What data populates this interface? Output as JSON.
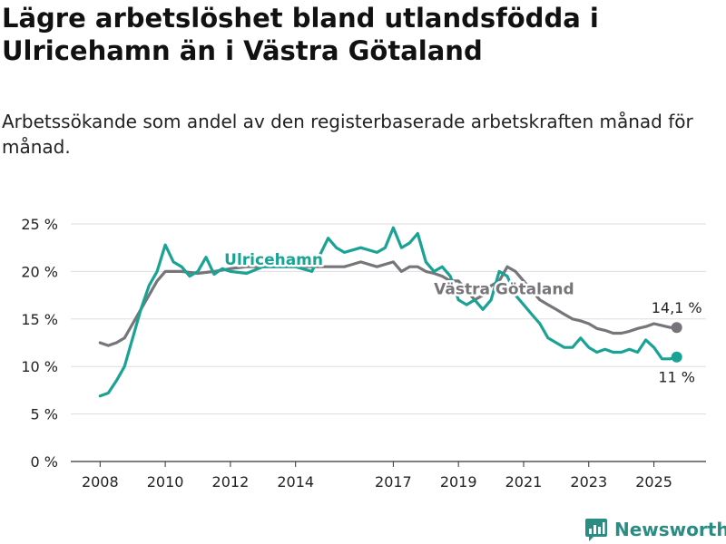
{
  "title": "Lägre arbetslöshet bland utlandsfödda i Ulricehamn än i Västra Götaland",
  "subtitle": "Arbetssökande som andel av den registerbaserade arbetskraften månad för månad.",
  "logo": {
    "text": "Newsworthy",
    "icon": "newsworthy-chart-icon"
  },
  "colors": {
    "ulricehamn": "#1aa395",
    "vastra": "#77747a",
    "grid": "#dddddd"
  },
  "chart_data": {
    "type": "line",
    "x_ticks": [
      2008,
      2010,
      2012,
      2014,
      2017,
      2019,
      2021,
      2023,
      2025
    ],
    "x_tick_labels": [
      "2008",
      "2010",
      "2012",
      "2014",
      "2017",
      "2019",
      "2021",
      "2023",
      "2025"
    ],
    "y_ticks": [
      0,
      5,
      10,
      15,
      20,
      25
    ],
    "y_tick_labels": [
      "0 %",
      "5 %",
      "10 %",
      "15 %",
      "20 %",
      "25 %"
    ],
    "xlim": [
      2007.1,
      2026.6
    ],
    "ylim": [
      0,
      25
    ],
    "grid": true,
    "series": [
      {
        "name": "Ulricehamn",
        "color": "#1aa395",
        "end_label": "11 %",
        "x": [
          2008.0,
          2008.25,
          2008.5,
          2008.75,
          2009.0,
          2009.25,
          2009.5,
          2009.75,
          2010.0,
          2010.25,
          2010.5,
          2010.75,
          2011.0,
          2011.25,
          2011.5,
          2011.75,
          2012.0,
          2012.5,
          2013.0,
          2013.5,
          2014.0,
          2014.5,
          2015.0,
          2015.25,
          2015.5,
          2016.0,
          2016.5,
          2016.75,
          2017.0,
          2017.25,
          2017.5,
          2017.75,
          2018.0,
          2018.25,
          2018.5,
          2018.75,
          2019.0,
          2019.25,
          2019.5,
          2019.75,
          2020.0,
          2020.25,
          2020.5,
          2020.75,
          2021.0,
          2021.25,
          2021.5,
          2021.75,
          2022.0,
          2022.25,
          2022.5,
          2022.75,
          2023.0,
          2023.25,
          2023.5,
          2023.75,
          2024.0,
          2024.25,
          2024.5,
          2024.75,
          2025.0,
          2025.25,
          2025.5,
          2025.7
        ],
        "y": [
          6.9,
          7.2,
          8.5,
          10.0,
          13.0,
          16.0,
          18.5,
          20.0,
          22.8,
          21.0,
          20.5,
          19.5,
          20.0,
          21.5,
          19.7,
          20.3,
          20.0,
          19.8,
          20.5,
          20.5,
          20.5,
          20.0,
          23.5,
          22.5,
          22.0,
          22.5,
          22.0,
          22.5,
          24.6,
          22.5,
          23.0,
          24.0,
          21.0,
          20.0,
          20.5,
          19.5,
          17.0,
          16.5,
          17.0,
          16.0,
          17.0,
          20.0,
          19.5,
          17.5,
          16.5,
          15.5,
          14.5,
          13.0,
          12.5,
          12.0,
          12.0,
          13.0,
          12.0,
          11.5,
          11.8,
          11.5,
          11.5,
          11.8,
          11.5,
          12.8,
          12.0,
          10.8,
          10.8,
          11.0
        ]
      },
      {
        "name": "Västra Götaland",
        "color": "#77747a",
        "end_label": "14,1 %",
        "x": [
          2008.0,
          2008.25,
          2008.5,
          2008.75,
          2009.0,
          2009.25,
          2009.5,
          2009.75,
          2010.0,
          2010.5,
          2011.0,
          2011.5,
          2012.0,
          2012.5,
          2013.0,
          2013.5,
          2014.0,
          2014.5,
          2015.0,
          2015.5,
          2016.0,
          2016.5,
          2017.0,
          2017.25,
          2017.5,
          2017.75,
          2018.0,
          2018.25,
          2018.5,
          2018.75,
          2019.0,
          2019.25,
          2019.5,
          2019.75,
          2020.0,
          2020.25,
          2020.5,
          2020.75,
          2021.0,
          2021.25,
          2021.5,
          2021.75,
          2022.0,
          2022.25,
          2022.5,
          2022.75,
          2023.0,
          2023.25,
          2023.5,
          2023.75,
          2024.0,
          2024.25,
          2024.5,
          2024.75,
          2025.0,
          2025.25,
          2025.5,
          2025.7
        ],
        "y": [
          12.5,
          12.2,
          12.5,
          13.0,
          14.5,
          16.0,
          17.5,
          19.0,
          20.0,
          20.0,
          19.8,
          20.0,
          20.3,
          20.5,
          20.5,
          20.5,
          20.5,
          20.5,
          20.5,
          20.5,
          21.0,
          20.5,
          21.0,
          20.0,
          20.5,
          20.5,
          20.0,
          19.8,
          19.5,
          19.0,
          19.0,
          18.0,
          17.0,
          17.5,
          18.5,
          19.0,
          20.5,
          20.0,
          19.0,
          18.0,
          17.0,
          16.5,
          16.0,
          15.5,
          15.0,
          14.8,
          14.5,
          14.0,
          13.8,
          13.5,
          13.5,
          13.7,
          14.0,
          14.2,
          14.5,
          14.3,
          14.1,
          14.1
        ]
      }
    ],
    "annotations": [
      {
        "text": "Ulricehamn",
        "series": "Ulricehamn"
      },
      {
        "text": "Västra Götaland",
        "series": "Västra Götaland"
      }
    ]
  }
}
